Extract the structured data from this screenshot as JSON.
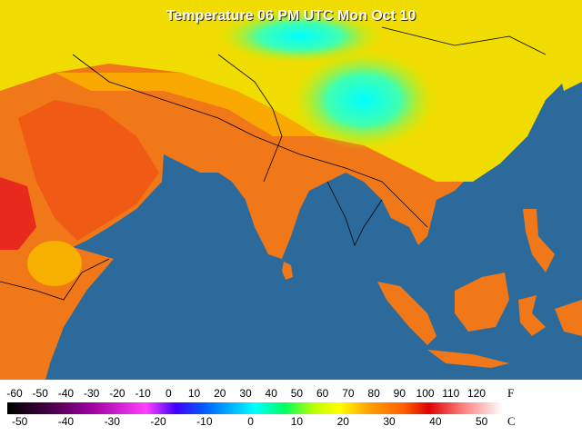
{
  "title": "Temperature 06 PM UTC Mon Oct 10",
  "legend": {
    "fahrenheit": {
      "unit": "F",
      "ticks": [
        -60,
        -50,
        -40,
        -30,
        -20,
        -10,
        0,
        10,
        20,
        30,
        40,
        50,
        60,
        70,
        80,
        90,
        100,
        110,
        120
      ]
    },
    "celsius": {
      "unit": "C",
      "ticks": [
        -50,
        -40,
        -30,
        -20,
        -10,
        0,
        10,
        20,
        30,
        40,
        50
      ]
    }
  }
}
